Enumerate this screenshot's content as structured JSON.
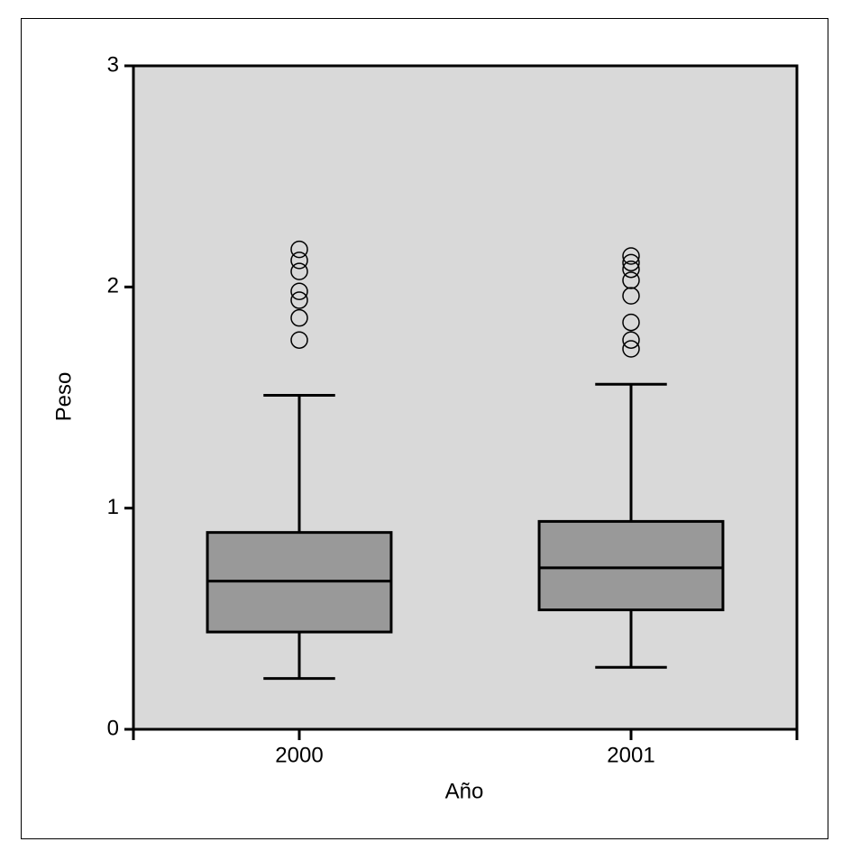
{
  "chart_data": {
    "type": "box",
    "x_label": "Año",
    "y_label": "Peso",
    "categories": [
      "2000",
      "2001"
    ],
    "boxes": [
      {
        "whisker_low": 0.23,
        "q1": 0.44,
        "median": 0.67,
        "q3": 0.89,
        "whisker_high": 1.51,
        "outliers": [
          1.76,
          1.86,
          1.94,
          1.98,
          2.07,
          2.12,
          2.17
        ]
      },
      {
        "whisker_low": 0.28,
        "q1": 0.54,
        "median": 0.73,
        "q3": 0.94,
        "whisker_high": 1.56,
        "outliers": [
          1.72,
          1.76,
          1.84,
          1.96,
          2.03,
          2.08,
          2.11,
          2.14
        ]
      }
    ],
    "ylim": [
      0,
      3
    ],
    "yticks": [
      0,
      1,
      2,
      3
    ],
    "box_color": "#999999",
    "background": "#d9d9d9"
  }
}
